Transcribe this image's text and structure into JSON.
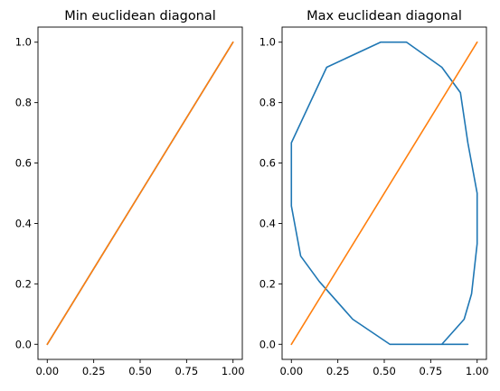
{
  "chart_data": [
    {
      "type": "line",
      "title": "Min euclidean diagonal",
      "xlabel": "",
      "ylabel": "",
      "xlim": [
        -0.05,
        1.05
      ],
      "ylim": [
        -0.05,
        1.05
      ],
      "xticks": [
        0.0,
        0.25,
        0.5,
        0.75,
        1.0
      ],
      "xtick_labels": [
        "0.00",
        "0.25",
        "0.50",
        "0.75",
        "1.00"
      ],
      "yticks": [
        0.0,
        0.2,
        0.4,
        0.6,
        0.8,
        1.0
      ],
      "ytick_labels": [
        "0.0",
        "0.2",
        "0.4",
        "0.6",
        "0.8",
        "1.0"
      ],
      "grid": false,
      "series": [
        {
          "color": "#1f77b4",
          "x": [
            0.0,
            1.0
          ],
          "y": [
            0.0,
            1.0
          ]
        },
        {
          "color": "#ff7f0e",
          "x": [
            0.0,
            1.0
          ],
          "y": [
            0.0,
            1.0
          ]
        }
      ]
    },
    {
      "type": "line",
      "title": "Max euclidean diagonal",
      "xlabel": "",
      "ylabel": "",
      "xlim": [
        -0.05,
        1.05
      ],
      "ylim": [
        -0.05,
        1.05
      ],
      "xticks": [
        0.0,
        0.25,
        0.5,
        0.75,
        1.0
      ],
      "xtick_labels": [
        "0.00",
        "0.25",
        "0.50",
        "0.75",
        "1.00"
      ],
      "yticks": [
        0.0,
        0.2,
        0.4,
        0.6,
        0.8,
        1.0
      ],
      "ytick_labels": [
        "0.0",
        "0.2",
        "0.4",
        "0.6",
        "0.8",
        "1.0"
      ],
      "grid": false,
      "series": [
        {
          "color": "#1f77b4",
          "x": [
            0.95,
            0.53,
            0.33,
            0.15,
            0.05,
            0.0,
            0.0,
            0.19,
            0.48,
            0.62,
            0.81,
            0.91,
            0.95,
            1.0,
            1.0,
            0.97,
            0.93,
            0.81
          ],
          "y": [
            0.0,
            0.0,
            0.083,
            0.208,
            0.292,
            0.458,
            0.667,
            0.917,
            1.0,
            1.0,
            0.917,
            0.833,
            0.667,
            0.5,
            0.333,
            0.167,
            0.083,
            0.0
          ]
        },
        {
          "color": "#ff7f0e",
          "x": [
            0.0,
            1.0
          ],
          "y": [
            0.0,
            1.0
          ]
        }
      ]
    }
  ]
}
